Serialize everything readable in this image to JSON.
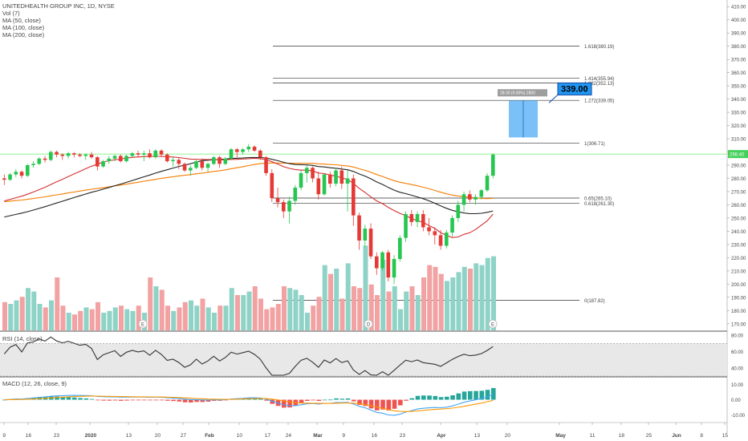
{
  "legend": {
    "title": "UNITEDHEALTH GROUP INC, 1D, NYSE",
    "vol": "Vol (7)",
    "ma50": "MA (50, close)",
    "ma100": "MA (100, close)",
    "ma200": "MA (200, close)"
  },
  "rsi_label": "RSI (14, close)",
  "macd_label": "MACD (12, 26, close, 9)",
  "colors": {
    "up": "#26c64f",
    "down": "#e53935",
    "vol_up": "#8fd3c7",
    "vol_down": "#f2a2a2",
    "ma50": "#d32f2f",
    "ma100": "#212121",
    "ma200": "#f57c00",
    "fib": "#333333",
    "target_box": "#64b5f6",
    "price_line": "#69f069"
  },
  "price_axis": {
    "ticks": [
      "410.00",
      "400.00",
      "390.00",
      "380.00",
      "370.00",
      "360.00",
      "350.00",
      "340.00",
      "330.00",
      "320.00",
      "310.00",
      "300.00",
      "290.00",
      "280.00",
      "270.00",
      "260.00",
      "250.00",
      "240.00",
      "230.00",
      "220.00",
      "210.00",
      "200.00",
      "190.00",
      "180.00",
      "170.00"
    ],
    "tick_values": [
      410,
      400,
      390,
      380,
      370,
      360,
      350,
      340,
      330,
      320,
      310,
      300,
      290,
      280,
      270,
      260,
      250,
      240,
      230,
      220,
      210,
      200,
      190,
      180,
      170
    ],
    "last_price_label": "298.40",
    "last_price": 298.4
  },
  "rsi_axis": {
    "ticks": [
      "80.00",
      "60.00",
      "40.00"
    ],
    "tick_values": [
      80,
      60,
      40
    ]
  },
  "macd_axis": {
    "ticks": [
      "10.00",
      "0.00",
      "-10.00"
    ],
    "tick_values": [
      10,
      0,
      -10
    ]
  },
  "x_axis": {
    "ticks": [
      "9",
      "16",
      "23",
      "2020",
      "13",
      "20",
      "27",
      "Feb",
      "10",
      "17",
      "24",
      "Mar",
      "9",
      "16",
      "23",
      "Apr",
      "13",
      "20",
      "May",
      "11",
      "18",
      "25",
      "Jun",
      "8",
      "15"
    ]
  },
  "fib_levels": [
    {
      "label": "1.618(380.19)",
      "value": 380.19
    },
    {
      "label": "1.414(355.94)",
      "value": 355.94
    },
    {
      "label": "1.382(352.13)",
      "value": 352.13
    },
    {
      "label": "1.272(339.05)",
      "value": 339.05
    },
    {
      "label": "1(306.71)",
      "value": 306.71
    },
    {
      "label": "0.65(265.10)",
      "value": 265.1
    },
    {
      "label": "0.618(261.30)",
      "value": 261.3
    },
    {
      "label": "0(187.82)",
      "value": 187.82
    }
  ],
  "target": {
    "label": "339.00",
    "value": 339.0,
    "measure_label": "28.00 (9.00%) 2800",
    "from_value": 311.0
  },
  "event_markers": [
    "E",
    "D",
    "E"
  ],
  "chart_data": {
    "type": "candlestick",
    "title": "UNITEDHEALTH GROUP INC, 1D, NYSE",
    "candles": [
      [
        280,
        283,
        275,
        279
      ],
      [
        279,
        284,
        278,
        283
      ],
      [
        283,
        287,
        281,
        285
      ],
      [
        285,
        286,
        280,
        282
      ],
      [
        282,
        291,
        281,
        290
      ],
      [
        290,
        293,
        288,
        291
      ],
      [
        291,
        296,
        290,
        295
      ],
      [
        295,
        297,
        292,
        294
      ],
      [
        294,
        301,
        293,
        300
      ],
      [
        300,
        301,
        296,
        298
      ],
      [
        298,
        299,
        294,
        297
      ],
      [
        297,
        300,
        295,
        299
      ],
      [
        299,
        300,
        296,
        298
      ],
      [
        298,
        299,
        296,
        297
      ],
      [
        297,
        299,
        294,
        298
      ],
      [
        298,
        300,
        295,
        296
      ],
      [
        296,
        297,
        286,
        289
      ],
      [
        289,
        294,
        288,
        293
      ],
      [
        293,
        297,
        291,
        295
      ],
      [
        295,
        298,
        293,
        297
      ],
      [
        297,
        298,
        292,
        293
      ],
      [
        293,
        298,
        292,
        297
      ],
      [
        297,
        300,
        296,
        299
      ],
      [
        299,
        301,
        296,
        298
      ],
      [
        298,
        301,
        293,
        299
      ],
      [
        299,
        302,
        295,
        296
      ],
      [
        296,
        302,
        295,
        301
      ],
      [
        301,
        302,
        296,
        298
      ],
      [
        298,
        299,
        292,
        293
      ],
      [
        293,
        296,
        289,
        294
      ],
      [
        294,
        296,
        287,
        291
      ],
      [
        291,
        292,
        285,
        286
      ],
      [
        286,
        290,
        282,
        288
      ],
      [
        288,
        294,
        287,
        293
      ],
      [
        293,
        295,
        286,
        288
      ],
      [
        288,
        292,
        285,
        291
      ],
      [
        291,
        297,
        290,
        296
      ],
      [
        296,
        297,
        288,
        291
      ],
      [
        291,
        296,
        290,
        295
      ],
      [
        295,
        303,
        294,
        302
      ],
      [
        302,
        303,
        296,
        300
      ],
      [
        300,
        303,
        298,
        302
      ],
      [
        302,
        306,
        300,
        304
      ],
      [
        304,
        305,
        300,
        301
      ],
      [
        301,
        302,
        294,
        296
      ],
      [
        296,
        297,
        282,
        284
      ],
      [
        284,
        287,
        262,
        265
      ],
      [
        265,
        273,
        258,
        262
      ],
      [
        262,
        264,
        250,
        255
      ],
      [
        255,
        266,
        246,
        263
      ],
      [
        263,
        275,
        260,
        273
      ],
      [
        273,
        286,
        271,
        284
      ],
      [
        284,
        290,
        277,
        288
      ],
      [
        288,
        289,
        277,
        280
      ],
      [
        280,
        285,
        264,
        268
      ],
      [
        268,
        284,
        267,
        283
      ],
      [
        283,
        285,
        273,
        276
      ],
      [
        276,
        288,
        274,
        286
      ],
      [
        286,
        289,
        272,
        276
      ],
      [
        276,
        286,
        255,
        280
      ],
      [
        280,
        283,
        244,
        252
      ],
      [
        252,
        254,
        226,
        233
      ],
      [
        233,
        245,
        228,
        242
      ],
      [
        242,
        246,
        219,
        221
      ],
      [
        221,
        224,
        207,
        212
      ],
      [
        212,
        225,
        210,
        224
      ],
      [
        224,
        226,
        202,
        205
      ],
      [
        205,
        222,
        200,
        219
      ],
      [
        219,
        237,
        217,
        235
      ],
      [
        235,
        255,
        232,
        253
      ],
      [
        253,
        256,
        244,
        247
      ],
      [
        247,
        255,
        243,
        253
      ],
      [
        253,
        256,
        240,
        243
      ],
      [
        243,
        250,
        237,
        240
      ],
      [
        240,
        243,
        230,
        237
      ],
      [
        237,
        241,
        226,
        229
      ],
      [
        229,
        241,
        227,
        239
      ],
      [
        239,
        252,
        236,
        250
      ],
      [
        250,
        263,
        247,
        260
      ],
      [
        260,
        270,
        255,
        268
      ],
      [
        268,
        271,
        262,
        264
      ],
      [
        264,
        268,
        260,
        266
      ],
      [
        266,
        272,
        264,
        271
      ],
      [
        271,
        284,
        270,
        282
      ],
      [
        282,
        299,
        280,
        298
      ]
    ],
    "volume": [
      16,
      15,
      17,
      19,
      24,
      22,
      15,
      13,
      17,
      30,
      14,
      10,
      9,
      11,
      13,
      12,
      16,
      10,
      11,
      13,
      14,
      12,
      11,
      14,
      10,
      30,
      25,
      23,
      14,
      11,
      13,
      16,
      17,
      14,
      18,
      13,
      10,
      14,
      14,
      24,
      20,
      20,
      22,
      25,
      18,
      12,
      13,
      15,
      25,
      24,
      23,
      20,
      10,
      14,
      19,
      37,
      32,
      35,
      18,
      38,
      25,
      24,
      48,
      26,
      20,
      40,
      22,
      25,
      12,
      22,
      25,
      20,
      30,
      37,
      36,
      32,
      28,
      30,
      33,
      36,
      35,
      38,
      37,
      41,
      42
    ],
    "ma50_visible_range": [
      245,
      300
    ],
    "rsi": {
      "ylim": [
        30,
        85
      ],
      "band": [
        30,
        70
      ]
    },
    "macd": {
      "ylim": [
        -15,
        15
      ]
    },
    "ylim": [
      165,
      415
    ],
    "y_scale": "linear"
  }
}
